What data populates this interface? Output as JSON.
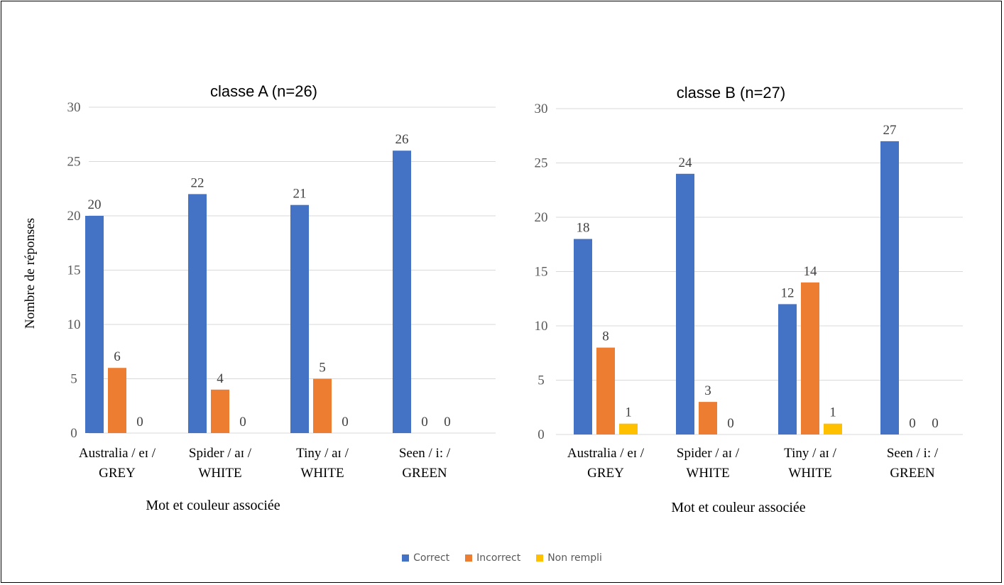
{
  "ylabel": "Nombre de réponses",
  "legend": [
    {
      "name": "Correct",
      "color": "#4472C4"
    },
    {
      "name": "Incorrect",
      "color": "#ED7D31"
    },
    {
      "name": "Non rempli",
      "color": "#FFC000"
    }
  ],
  "chart_data": [
    {
      "type": "bar",
      "title": "classe A (n=26)",
      "xlabel": "Mot et couleur associée",
      "ylabel": "Nombre de réponses",
      "ylim": [
        0,
        30
      ],
      "yticks": [
        0,
        5,
        10,
        15,
        20,
        25,
        30
      ],
      "grid": true,
      "legend_position": "bottom",
      "categories": [
        [
          "Australia / eɪ /",
          "GREY"
        ],
        [
          "Spider / aɪ /",
          "WHITE"
        ],
        [
          "Tiny / aɪ /",
          "WHITE"
        ],
        [
          "Seen / i: /",
          "GREEN"
        ]
      ],
      "series": [
        {
          "name": "Correct",
          "color": "#4472C4",
          "values": [
            20,
            22,
            21,
            26
          ]
        },
        {
          "name": "Incorrect",
          "color": "#ED7D31",
          "values": [
            6,
            4,
            5,
            0
          ]
        },
        {
          "name": "Non rempli",
          "color": "#FFC000",
          "values": [
            0,
            0,
            0,
            0
          ]
        }
      ],
      "data_labels": [
        [
          20,
          6,
          0
        ],
        [
          22,
          4,
          0
        ],
        [
          21,
          5,
          0
        ],
        [
          26,
          null,
          null,
          "0 0"
        ]
      ]
    },
    {
      "type": "bar",
      "title": "classe B (n=27)",
      "xlabel": "Mot et couleur associée",
      "ylim": [
        0,
        30
      ],
      "yticks": [
        0,
        5,
        10,
        15,
        20,
        25,
        30
      ],
      "grid": true,
      "legend_position": "bottom",
      "categories": [
        [
          "Australia / eɪ /",
          "GREY"
        ],
        [
          "Spider / aɪ /",
          "WHITE"
        ],
        [
          "Tiny / aɪ /",
          "WHITE"
        ],
        [
          "Seen / i: /",
          "GREEN"
        ]
      ],
      "series": [
        {
          "name": "Correct",
          "color": "#4472C4",
          "values": [
            18,
            24,
            12,
            27
          ]
        },
        {
          "name": "Incorrect",
          "color": "#ED7D31",
          "values": [
            8,
            3,
            14,
            0
          ]
        },
        {
          "name": "Non rempli",
          "color": "#FFC000",
          "values": [
            1,
            0,
            1,
            0
          ]
        }
      ]
    }
  ]
}
